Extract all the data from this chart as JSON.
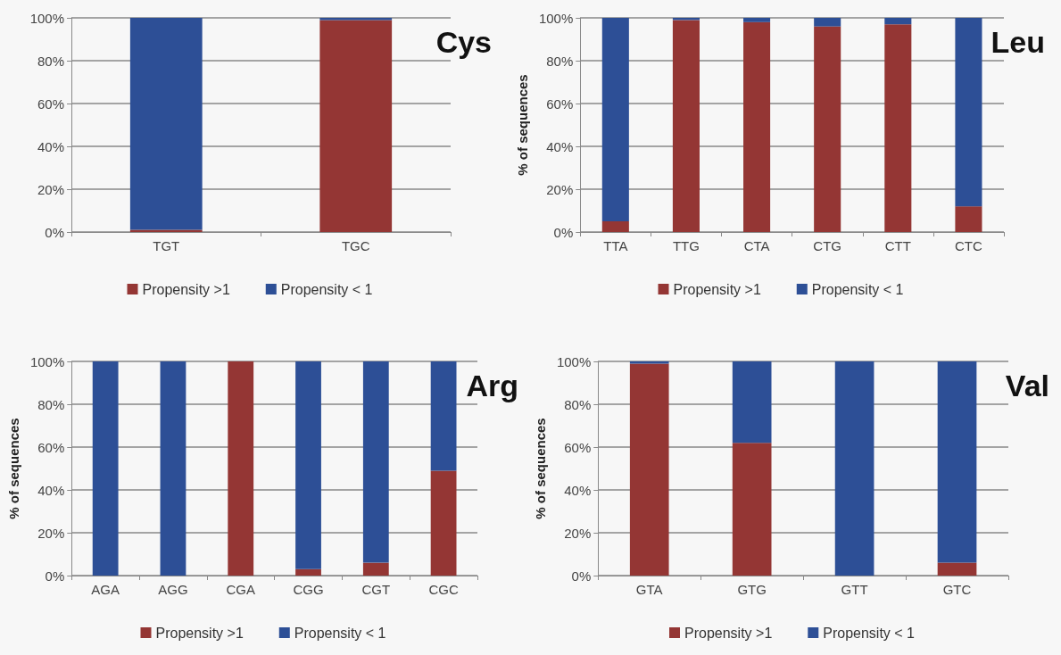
{
  "chart_data": [
    {
      "type": "bar",
      "stacked": true,
      "title": "Cys",
      "categories": [
        "TGT",
        "TGC"
      ],
      "series": [
        {
          "name": "Propensity >1",
          "color": "#943634",
          "values": [
            1,
            99
          ]
        },
        {
          "name": "Propensity < 1",
          "color": "#2d4f96",
          "values": [
            99,
            1
          ]
        }
      ],
      "ylim": [
        0,
        100
      ],
      "yticks": [
        {
          "value": 0,
          "label": "0%"
        },
        {
          "value": 20,
          "label": "20%"
        },
        {
          "value": 40,
          "label": "40%"
        },
        {
          "value": 60,
          "label": "60%"
        },
        {
          "value": 80,
          "label": "80%"
        },
        {
          "value": 100,
          "label": "100%"
        }
      ],
      "grid": "y",
      "legend": "bottom"
    },
    {
      "type": "bar",
      "stacked": true,
      "title": "Leu",
      "ylabel": "% of sequences",
      "categories": [
        "TTA",
        "TTG",
        "CTA",
        "CTG",
        "CTT",
        "CTC"
      ],
      "series": [
        {
          "name": "Propensity >1",
          "color": "#943634",
          "values": [
            5,
            99,
            98,
            96,
            97,
            12
          ]
        },
        {
          "name": "Propensity < 1",
          "color": "#2d4f96",
          "values": [
            95,
            1,
            2,
            4,
            3,
            88
          ]
        }
      ],
      "ylim": [
        0,
        100
      ],
      "yticks": [
        {
          "value": 0,
          "label": "0%"
        },
        {
          "value": 20,
          "label": "20%"
        },
        {
          "value": 40,
          "label": "40%"
        },
        {
          "value": 60,
          "label": "60%"
        },
        {
          "value": 80,
          "label": "80%"
        },
        {
          "value": 100,
          "label": "100%"
        }
      ],
      "grid": "y",
      "legend": "bottom"
    },
    {
      "type": "bar",
      "stacked": true,
      "title": "Arg",
      "ylabel": "% of sequences",
      "categories": [
        "AGA",
        "AGG",
        "CGA",
        "CGG",
        "CGT",
        "CGC"
      ],
      "series": [
        {
          "name": "Propensity >1",
          "color": "#943634",
          "values": [
            0,
            0,
            100,
            3,
            6,
            49
          ]
        },
        {
          "name": "Propensity < 1",
          "color": "#2d4f96",
          "values": [
            100,
            100,
            0,
            97,
            94,
            51
          ]
        }
      ],
      "ylim": [
        0,
        100
      ],
      "yticks": [
        {
          "value": 0,
          "label": "0%"
        },
        {
          "value": 20,
          "label": "20%"
        },
        {
          "value": 40,
          "label": "40%"
        },
        {
          "value": 60,
          "label": "60%"
        },
        {
          "value": 80,
          "label": "80%"
        },
        {
          "value": 100,
          "label": "100%"
        }
      ],
      "grid": "y",
      "legend": "bottom"
    },
    {
      "type": "bar",
      "stacked": true,
      "title": "Val",
      "ylabel": "% of sequences",
      "categories": [
        "GTA",
        "GTG",
        "GTT",
        "GTC"
      ],
      "series": [
        {
          "name": "Propensity >1",
          "color": "#943634",
          "values": [
            99,
            62,
            0,
            6
          ]
        },
        {
          "name": "Propensity < 1",
          "color": "#2d4f96",
          "values": [
            1,
            38,
            100,
            94
          ]
        }
      ],
      "ylim": [
        0,
        100
      ],
      "yticks": [
        {
          "value": 0,
          "label": "0%"
        },
        {
          "value": 20,
          "label": "20%"
        },
        {
          "value": 40,
          "label": "40%"
        },
        {
          "value": 60,
          "label": "60%"
        },
        {
          "value": 80,
          "label": "80%"
        },
        {
          "value": 100,
          "label": "100%"
        }
      ],
      "grid": "y",
      "legend": "bottom"
    }
  ]
}
